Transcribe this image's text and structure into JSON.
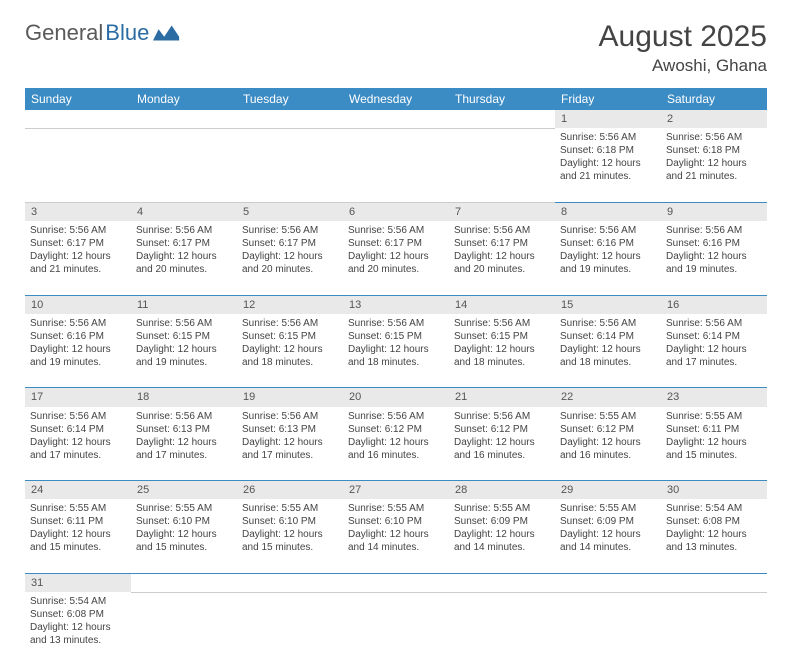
{
  "logo": {
    "general": "General",
    "blue": "Blue"
  },
  "title": "August 2025",
  "location": "Awoshi, Ghana",
  "colors": {
    "header_bg": "#3b8bc4",
    "header_text": "#ffffff",
    "daynum_bg": "#e9e9e9",
    "row_border": "#3b8bc4",
    "text": "#444444"
  },
  "weekdays": [
    "Sunday",
    "Monday",
    "Tuesday",
    "Wednesday",
    "Thursday",
    "Friday",
    "Saturday"
  ],
  "weeks": [
    [
      null,
      null,
      null,
      null,
      null,
      {
        "n": "1",
        "sr": "Sunrise: 5:56 AM",
        "ss": "Sunset: 6:18 PM",
        "d1": "Daylight: 12 hours",
        "d2": "and 21 minutes."
      },
      {
        "n": "2",
        "sr": "Sunrise: 5:56 AM",
        "ss": "Sunset: 6:18 PM",
        "d1": "Daylight: 12 hours",
        "d2": "and 21 minutes."
      }
    ],
    [
      {
        "n": "3",
        "sr": "Sunrise: 5:56 AM",
        "ss": "Sunset: 6:17 PM",
        "d1": "Daylight: 12 hours",
        "d2": "and 21 minutes."
      },
      {
        "n": "4",
        "sr": "Sunrise: 5:56 AM",
        "ss": "Sunset: 6:17 PM",
        "d1": "Daylight: 12 hours",
        "d2": "and 20 minutes."
      },
      {
        "n": "5",
        "sr": "Sunrise: 5:56 AM",
        "ss": "Sunset: 6:17 PM",
        "d1": "Daylight: 12 hours",
        "d2": "and 20 minutes."
      },
      {
        "n": "6",
        "sr": "Sunrise: 5:56 AM",
        "ss": "Sunset: 6:17 PM",
        "d1": "Daylight: 12 hours",
        "d2": "and 20 minutes."
      },
      {
        "n": "7",
        "sr": "Sunrise: 5:56 AM",
        "ss": "Sunset: 6:17 PM",
        "d1": "Daylight: 12 hours",
        "d2": "and 20 minutes."
      },
      {
        "n": "8",
        "sr": "Sunrise: 5:56 AM",
        "ss": "Sunset: 6:16 PM",
        "d1": "Daylight: 12 hours",
        "d2": "and 19 minutes."
      },
      {
        "n": "9",
        "sr": "Sunrise: 5:56 AM",
        "ss": "Sunset: 6:16 PM",
        "d1": "Daylight: 12 hours",
        "d2": "and 19 minutes."
      }
    ],
    [
      {
        "n": "10",
        "sr": "Sunrise: 5:56 AM",
        "ss": "Sunset: 6:16 PM",
        "d1": "Daylight: 12 hours",
        "d2": "and 19 minutes."
      },
      {
        "n": "11",
        "sr": "Sunrise: 5:56 AM",
        "ss": "Sunset: 6:15 PM",
        "d1": "Daylight: 12 hours",
        "d2": "and 19 minutes."
      },
      {
        "n": "12",
        "sr": "Sunrise: 5:56 AM",
        "ss": "Sunset: 6:15 PM",
        "d1": "Daylight: 12 hours",
        "d2": "and 18 minutes."
      },
      {
        "n": "13",
        "sr": "Sunrise: 5:56 AM",
        "ss": "Sunset: 6:15 PM",
        "d1": "Daylight: 12 hours",
        "d2": "and 18 minutes."
      },
      {
        "n": "14",
        "sr": "Sunrise: 5:56 AM",
        "ss": "Sunset: 6:15 PM",
        "d1": "Daylight: 12 hours",
        "d2": "and 18 minutes."
      },
      {
        "n": "15",
        "sr": "Sunrise: 5:56 AM",
        "ss": "Sunset: 6:14 PM",
        "d1": "Daylight: 12 hours",
        "d2": "and 18 minutes."
      },
      {
        "n": "16",
        "sr": "Sunrise: 5:56 AM",
        "ss": "Sunset: 6:14 PM",
        "d1": "Daylight: 12 hours",
        "d2": "and 17 minutes."
      }
    ],
    [
      {
        "n": "17",
        "sr": "Sunrise: 5:56 AM",
        "ss": "Sunset: 6:14 PM",
        "d1": "Daylight: 12 hours",
        "d2": "and 17 minutes."
      },
      {
        "n": "18",
        "sr": "Sunrise: 5:56 AM",
        "ss": "Sunset: 6:13 PM",
        "d1": "Daylight: 12 hours",
        "d2": "and 17 minutes."
      },
      {
        "n": "19",
        "sr": "Sunrise: 5:56 AM",
        "ss": "Sunset: 6:13 PM",
        "d1": "Daylight: 12 hours",
        "d2": "and 17 minutes."
      },
      {
        "n": "20",
        "sr": "Sunrise: 5:56 AM",
        "ss": "Sunset: 6:12 PM",
        "d1": "Daylight: 12 hours",
        "d2": "and 16 minutes."
      },
      {
        "n": "21",
        "sr": "Sunrise: 5:56 AM",
        "ss": "Sunset: 6:12 PM",
        "d1": "Daylight: 12 hours",
        "d2": "and 16 minutes."
      },
      {
        "n": "22",
        "sr": "Sunrise: 5:55 AM",
        "ss": "Sunset: 6:12 PM",
        "d1": "Daylight: 12 hours",
        "d2": "and 16 minutes."
      },
      {
        "n": "23",
        "sr": "Sunrise: 5:55 AM",
        "ss": "Sunset: 6:11 PM",
        "d1": "Daylight: 12 hours",
        "d2": "and 15 minutes."
      }
    ],
    [
      {
        "n": "24",
        "sr": "Sunrise: 5:55 AM",
        "ss": "Sunset: 6:11 PM",
        "d1": "Daylight: 12 hours",
        "d2": "and 15 minutes."
      },
      {
        "n": "25",
        "sr": "Sunrise: 5:55 AM",
        "ss": "Sunset: 6:10 PM",
        "d1": "Daylight: 12 hours",
        "d2": "and 15 minutes."
      },
      {
        "n": "26",
        "sr": "Sunrise: 5:55 AM",
        "ss": "Sunset: 6:10 PM",
        "d1": "Daylight: 12 hours",
        "d2": "and 15 minutes."
      },
      {
        "n": "27",
        "sr": "Sunrise: 5:55 AM",
        "ss": "Sunset: 6:10 PM",
        "d1": "Daylight: 12 hours",
        "d2": "and 14 minutes."
      },
      {
        "n": "28",
        "sr": "Sunrise: 5:55 AM",
        "ss": "Sunset: 6:09 PM",
        "d1": "Daylight: 12 hours",
        "d2": "and 14 minutes."
      },
      {
        "n": "29",
        "sr": "Sunrise: 5:55 AM",
        "ss": "Sunset: 6:09 PM",
        "d1": "Daylight: 12 hours",
        "d2": "and 14 minutes."
      },
      {
        "n": "30",
        "sr": "Sunrise: 5:54 AM",
        "ss": "Sunset: 6:08 PM",
        "d1": "Daylight: 12 hours",
        "d2": "and 13 minutes."
      }
    ],
    [
      {
        "n": "31",
        "sr": "Sunrise: 5:54 AM",
        "ss": "Sunset: 6:08 PM",
        "d1": "Daylight: 12 hours",
        "d2": "and 13 minutes."
      },
      null,
      null,
      null,
      null,
      null,
      null
    ]
  ]
}
